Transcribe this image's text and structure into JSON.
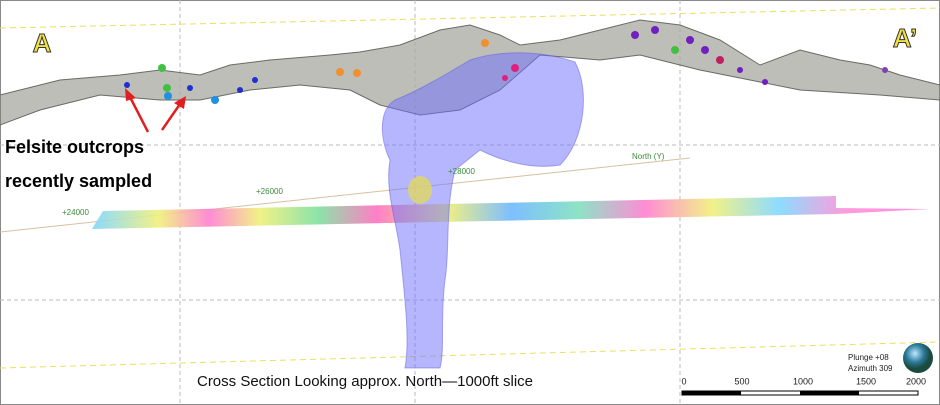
{
  "labels": {
    "section_start": "A",
    "section_end": "A’",
    "callout": [
      "Felsite outcrops",
      "recently sampled"
    ],
    "caption": "Cross Section Looking approx. North—1000ft slice"
  },
  "grid_axis": {
    "name": "North (Y)",
    "ticks": [
      "+24000",
      "+26000",
      "+28000"
    ]
  },
  "orientation": [
    "Plunge +08",
    "Azimuth 309"
  ],
  "scale_bar": {
    "ticks": [
      "0",
      "500",
      "1000",
      "1500",
      "2000"
    ]
  }
}
